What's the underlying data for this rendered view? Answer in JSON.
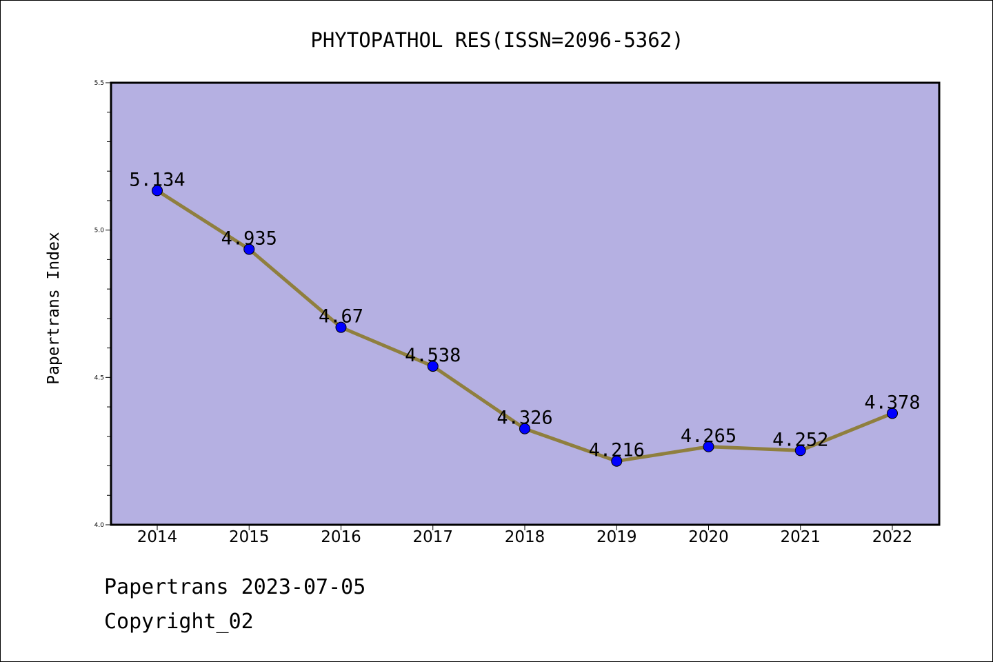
{
  "chart_data": {
    "type": "line",
    "title": "PHYTOPATHOL RES(ISSN=2096-5362)",
    "ylabel": "Papertrans Index",
    "xlabel": "",
    "categories": [
      "2014",
      "2015",
      "2016",
      "2017",
      "2018",
      "2019",
      "2020",
      "2021",
      "2022"
    ],
    "series": [
      {
        "values": [
          5.134,
          4.935,
          4.67,
          4.538,
          4.326,
          4.216,
          4.265,
          4.252,
          4.378
        ],
        "labels": [
          "5.134",
          "4.935",
          "4.67",
          "4.538",
          "4.326",
          "4.216",
          "4.265",
          "4.252",
          "4.378"
        ]
      }
    ],
    "ylim": [
      4.0,
      5.5
    ],
    "yticks": [
      4.0,
      4.5,
      5.0,
      5.5
    ],
    "ytick_labels": [
      "4.0",
      "4.5",
      "5.0",
      "5.5"
    ],
    "grid": false,
    "colors": {
      "plot_background": "#b5b0e2",
      "line": "#8f7f3e",
      "marker": "#0000ff"
    }
  },
  "footer": {
    "date_line": "Papertrans 2023-07-05",
    "copyright": "Copyright_02"
  }
}
